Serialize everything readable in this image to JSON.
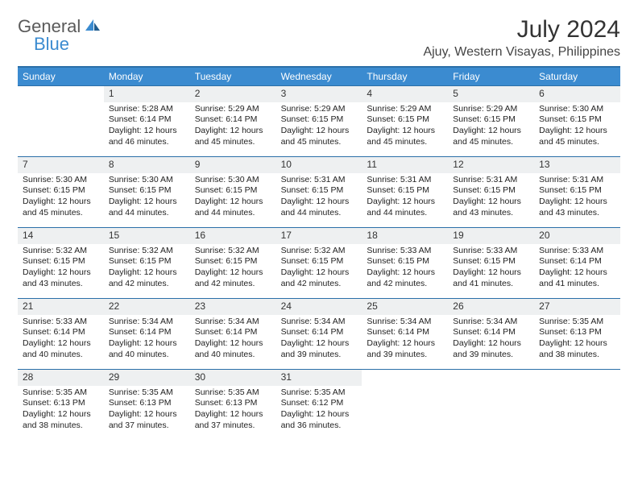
{
  "brand": {
    "general": "General",
    "blue": "Blue"
  },
  "title": "July 2024",
  "location": "Ajuy, Western Visayas, Philippines",
  "colors": {
    "header_bg": "#3b8bd0",
    "header_border": "#2b6fa8",
    "daynum_bg": "#eef0f1",
    "text": "#222222",
    "logo_gray": "#5a5a5a",
    "logo_blue": "#3b8bd0",
    "background": "#ffffff"
  },
  "day_names": [
    "Sunday",
    "Monday",
    "Tuesday",
    "Wednesday",
    "Thursday",
    "Friday",
    "Saturday"
  ],
  "weeks": [
    [
      {
        "num": "",
        "sunrise": "",
        "sunset": "",
        "daylight": ""
      },
      {
        "num": "1",
        "sunrise": "Sunrise: 5:28 AM",
        "sunset": "Sunset: 6:14 PM",
        "daylight": "Daylight: 12 hours and 46 minutes."
      },
      {
        "num": "2",
        "sunrise": "Sunrise: 5:29 AM",
        "sunset": "Sunset: 6:14 PM",
        "daylight": "Daylight: 12 hours and 45 minutes."
      },
      {
        "num": "3",
        "sunrise": "Sunrise: 5:29 AM",
        "sunset": "Sunset: 6:15 PM",
        "daylight": "Daylight: 12 hours and 45 minutes."
      },
      {
        "num": "4",
        "sunrise": "Sunrise: 5:29 AM",
        "sunset": "Sunset: 6:15 PM",
        "daylight": "Daylight: 12 hours and 45 minutes."
      },
      {
        "num": "5",
        "sunrise": "Sunrise: 5:29 AM",
        "sunset": "Sunset: 6:15 PM",
        "daylight": "Daylight: 12 hours and 45 minutes."
      },
      {
        "num": "6",
        "sunrise": "Sunrise: 5:30 AM",
        "sunset": "Sunset: 6:15 PM",
        "daylight": "Daylight: 12 hours and 45 minutes."
      }
    ],
    [
      {
        "num": "7",
        "sunrise": "Sunrise: 5:30 AM",
        "sunset": "Sunset: 6:15 PM",
        "daylight": "Daylight: 12 hours and 45 minutes."
      },
      {
        "num": "8",
        "sunrise": "Sunrise: 5:30 AM",
        "sunset": "Sunset: 6:15 PM",
        "daylight": "Daylight: 12 hours and 44 minutes."
      },
      {
        "num": "9",
        "sunrise": "Sunrise: 5:30 AM",
        "sunset": "Sunset: 6:15 PM",
        "daylight": "Daylight: 12 hours and 44 minutes."
      },
      {
        "num": "10",
        "sunrise": "Sunrise: 5:31 AM",
        "sunset": "Sunset: 6:15 PM",
        "daylight": "Daylight: 12 hours and 44 minutes."
      },
      {
        "num": "11",
        "sunrise": "Sunrise: 5:31 AM",
        "sunset": "Sunset: 6:15 PM",
        "daylight": "Daylight: 12 hours and 44 minutes."
      },
      {
        "num": "12",
        "sunrise": "Sunrise: 5:31 AM",
        "sunset": "Sunset: 6:15 PM",
        "daylight": "Daylight: 12 hours and 43 minutes."
      },
      {
        "num": "13",
        "sunrise": "Sunrise: 5:31 AM",
        "sunset": "Sunset: 6:15 PM",
        "daylight": "Daylight: 12 hours and 43 minutes."
      }
    ],
    [
      {
        "num": "14",
        "sunrise": "Sunrise: 5:32 AM",
        "sunset": "Sunset: 6:15 PM",
        "daylight": "Daylight: 12 hours and 43 minutes."
      },
      {
        "num": "15",
        "sunrise": "Sunrise: 5:32 AM",
        "sunset": "Sunset: 6:15 PM",
        "daylight": "Daylight: 12 hours and 42 minutes."
      },
      {
        "num": "16",
        "sunrise": "Sunrise: 5:32 AM",
        "sunset": "Sunset: 6:15 PM",
        "daylight": "Daylight: 12 hours and 42 minutes."
      },
      {
        "num": "17",
        "sunrise": "Sunrise: 5:32 AM",
        "sunset": "Sunset: 6:15 PM",
        "daylight": "Daylight: 12 hours and 42 minutes."
      },
      {
        "num": "18",
        "sunrise": "Sunrise: 5:33 AM",
        "sunset": "Sunset: 6:15 PM",
        "daylight": "Daylight: 12 hours and 42 minutes."
      },
      {
        "num": "19",
        "sunrise": "Sunrise: 5:33 AM",
        "sunset": "Sunset: 6:15 PM",
        "daylight": "Daylight: 12 hours and 41 minutes."
      },
      {
        "num": "20",
        "sunrise": "Sunrise: 5:33 AM",
        "sunset": "Sunset: 6:14 PM",
        "daylight": "Daylight: 12 hours and 41 minutes."
      }
    ],
    [
      {
        "num": "21",
        "sunrise": "Sunrise: 5:33 AM",
        "sunset": "Sunset: 6:14 PM",
        "daylight": "Daylight: 12 hours and 40 minutes."
      },
      {
        "num": "22",
        "sunrise": "Sunrise: 5:34 AM",
        "sunset": "Sunset: 6:14 PM",
        "daylight": "Daylight: 12 hours and 40 minutes."
      },
      {
        "num": "23",
        "sunrise": "Sunrise: 5:34 AM",
        "sunset": "Sunset: 6:14 PM",
        "daylight": "Daylight: 12 hours and 40 minutes."
      },
      {
        "num": "24",
        "sunrise": "Sunrise: 5:34 AM",
        "sunset": "Sunset: 6:14 PM",
        "daylight": "Daylight: 12 hours and 39 minutes."
      },
      {
        "num": "25",
        "sunrise": "Sunrise: 5:34 AM",
        "sunset": "Sunset: 6:14 PM",
        "daylight": "Daylight: 12 hours and 39 minutes."
      },
      {
        "num": "26",
        "sunrise": "Sunrise: 5:34 AM",
        "sunset": "Sunset: 6:14 PM",
        "daylight": "Daylight: 12 hours and 39 minutes."
      },
      {
        "num": "27",
        "sunrise": "Sunrise: 5:35 AM",
        "sunset": "Sunset: 6:13 PM",
        "daylight": "Daylight: 12 hours and 38 minutes."
      }
    ],
    [
      {
        "num": "28",
        "sunrise": "Sunrise: 5:35 AM",
        "sunset": "Sunset: 6:13 PM",
        "daylight": "Daylight: 12 hours and 38 minutes."
      },
      {
        "num": "29",
        "sunrise": "Sunrise: 5:35 AM",
        "sunset": "Sunset: 6:13 PM",
        "daylight": "Daylight: 12 hours and 37 minutes."
      },
      {
        "num": "30",
        "sunrise": "Sunrise: 5:35 AM",
        "sunset": "Sunset: 6:13 PM",
        "daylight": "Daylight: 12 hours and 37 minutes."
      },
      {
        "num": "31",
        "sunrise": "Sunrise: 5:35 AM",
        "sunset": "Sunset: 6:12 PM",
        "daylight": "Daylight: 12 hours and 36 minutes."
      },
      {
        "num": "",
        "sunrise": "",
        "sunset": "",
        "daylight": ""
      },
      {
        "num": "",
        "sunrise": "",
        "sunset": "",
        "daylight": ""
      },
      {
        "num": "",
        "sunrise": "",
        "sunset": "",
        "daylight": ""
      }
    ]
  ]
}
